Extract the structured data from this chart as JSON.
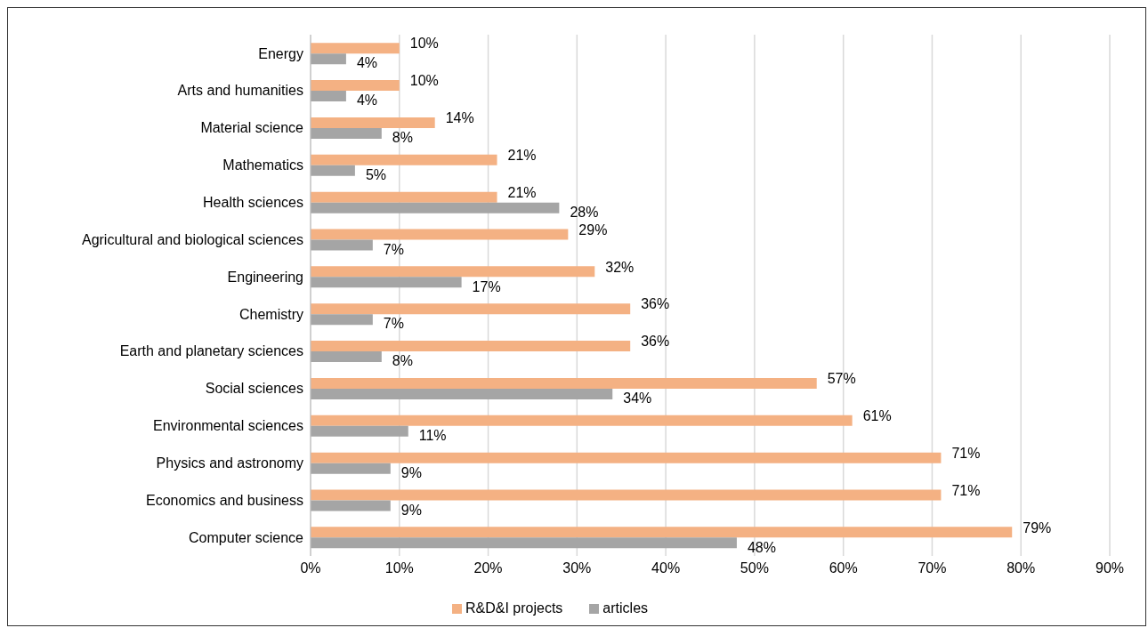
{
  "chart_data": {
    "type": "bar",
    "orientation": "horizontal",
    "categories": [
      "Energy",
      "Arts and humanities",
      "Material science",
      "Mathematics",
      "Health sciences",
      "Agricultural and biological sciences",
      "Engineering",
      "Chemistry",
      "Earth and planetary sciences",
      "Social sciences",
      "Environmental sciences",
      "Physics and astronomy",
      "Economics and business",
      "Computer science"
    ],
    "series": [
      {
        "name": "R&D&I projects",
        "color": "#f4b183",
        "values": [
          10,
          10,
          14,
          21,
          21,
          29,
          32,
          36,
          36,
          57,
          61,
          71,
          71,
          79
        ],
        "value_labels": [
          "10%",
          "10%",
          "14%",
          "21%",
          "21%",
          "29%",
          "32%",
          "36%",
          "36%",
          "57%",
          "61%",
          "71%",
          "71%",
          "79%"
        ]
      },
      {
        "name": "articles",
        "color": "#a5a5a5",
        "values": [
          4,
          4,
          8,
          5,
          28,
          7,
          17,
          7,
          8,
          34,
          11,
          9,
          9,
          48
        ],
        "value_labels": [
          "4%",
          "4%",
          "8%",
          "5%",
          "28%",
          "7%",
          "17%",
          "7%",
          "8%",
          "34%",
          "11%",
          "9%",
          "9%",
          "48%"
        ]
      }
    ],
    "xlim": [
      0,
      90
    ],
    "xticks": [
      {
        "value": 0,
        "label": "0%"
      },
      {
        "value": 10,
        "label": "10%"
      },
      {
        "value": 20,
        "label": "20%"
      },
      {
        "value": 30,
        "label": "30%"
      },
      {
        "value": 40,
        "label": "40%"
      },
      {
        "value": 50,
        "label": "50%"
      },
      {
        "value": 60,
        "label": "60%"
      },
      {
        "value": 70,
        "label": "70%"
      },
      {
        "value": 80,
        "label": "80%"
      },
      {
        "value": 90,
        "label": "90%"
      }
    ],
    "grid": "x",
    "legend": "bottom"
  }
}
